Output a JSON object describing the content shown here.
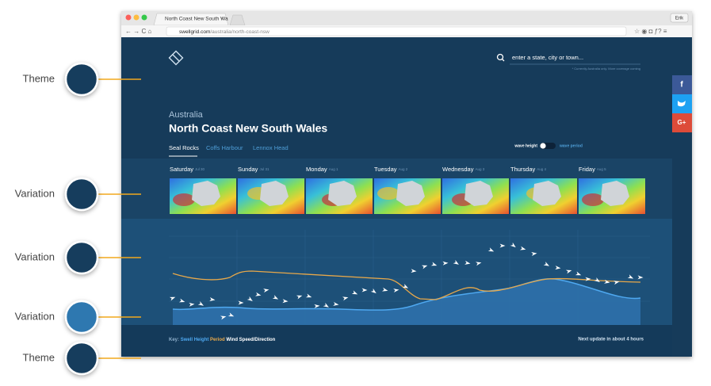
{
  "annotations": [
    "Theme",
    "Variation",
    "Variation",
    "Variation",
    "Theme"
  ],
  "browser": {
    "tab": "North Coast New South Wa",
    "user": "Erik",
    "url_host": "swellgrid.com",
    "url_path": "/australia/north-coast-nsw"
  },
  "header": {
    "search_placeholder": "enter a state, city or town...",
    "search_note": "* Currently Australia only. More coverage coming"
  },
  "location": {
    "country": "Australia",
    "region": "North Coast New South Wales",
    "spots": [
      "Seal Rocks",
      "Coffs Harbour",
      "Lennox Head"
    ]
  },
  "toggle": {
    "on": "wave height",
    "off": "wave period"
  },
  "days": [
    {
      "name": "Saturday",
      "date": "Jul 30"
    },
    {
      "name": "Sunday",
      "date": "Jul 31"
    },
    {
      "name": "Monday",
      "date": "Aug 1"
    },
    {
      "name": "Tuesday",
      "date": "Aug 2"
    },
    {
      "name": "Wednesday",
      "date": "Aug 3"
    },
    {
      "name": "Thursday",
      "date": "Aug 4"
    },
    {
      "name": "Friday",
      "date": "Aug 5"
    }
  ],
  "social": [
    "f",
    "G+"
  ],
  "footer": {
    "key": "Key:",
    "items": [
      "Swell Height",
      "Period",
      "Wind Speed/Direction"
    ],
    "update": "Next update in about 4 hours"
  }
}
